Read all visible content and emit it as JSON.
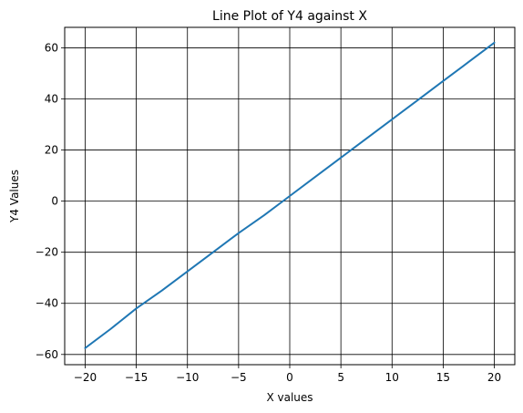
{
  "chart_data": {
    "type": "line",
    "title": "Line Plot of Y4 against X",
    "xlabel": "X values",
    "ylabel": "Y4 Values",
    "xlim": [
      -22,
      22
    ],
    "ylim": [
      -64,
      68
    ],
    "xticks": [
      -20,
      -15,
      -10,
      -5,
      0,
      5,
      10,
      15,
      20
    ],
    "xtick_labels": [
      "−20",
      "−15",
      "−10",
      "−5",
      "0",
      "5",
      "10",
      "15",
      "20"
    ],
    "yticks": [
      -60,
      -40,
      -20,
      0,
      20,
      40,
      60
    ],
    "ytick_labels": [
      "−60",
      "−40",
      "−20",
      "0",
      "20",
      "40",
      "60"
    ],
    "grid": true,
    "grid_color": "#000000",
    "line_color": "#1f77b4",
    "series": [
      {
        "x": [
          -20,
          -17.5,
          -15,
          -12.5,
          -10,
          -7.5,
          -5,
          -2.5,
          0,
          2.5,
          5,
          7.5,
          10,
          12.5,
          15,
          17.5,
          20
        ],
        "values": [
          -57.5,
          -50,
          -42,
          -35,
          -27.5,
          -20,
          -12.5,
          -5.5,
          2,
          9.5,
          17,
          24.5,
          32,
          39.5,
          47,
          54.5,
          62
        ]
      }
    ]
  }
}
